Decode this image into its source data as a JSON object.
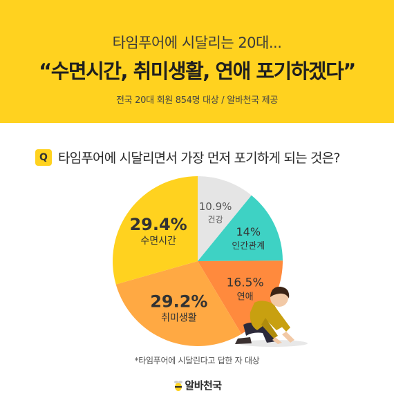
{
  "header": {
    "subtitle": "타임푸어에 시달리는 20대...",
    "title": "“수면시간, 취미생활, 연애 포기하겠다”",
    "source": "전국 20대 회원 854명 대상 / 알바천국 제공"
  },
  "question": {
    "badge": "Q",
    "text": "타임푸어에 시달리면서 가장 먼저 포기하게 되는 것은?"
  },
  "chart_data": {
    "type": "pie",
    "title": "",
    "slices": [
      {
        "label": "건강",
        "value": 10.9,
        "display": "10.9%",
        "color": "#e5e5e5"
      },
      {
        "label": "인간관계",
        "value": 14,
        "display": "14%",
        "color": "#3ed2c4"
      },
      {
        "label": "연애",
        "value": 16.5,
        "display": "16.5%",
        "color": "#ff8a3d"
      },
      {
        "label": "취미생활",
        "value": 29.2,
        "display": "29.2%",
        "color": "#ffa943"
      },
      {
        "label": "수면시간",
        "value": 29.4,
        "display": "29.4%",
        "color": "#ffd21f"
      }
    ]
  },
  "note": "*타임푸어에 시달린다고 답한 자 대상",
  "logo": {
    "text": "알바천국",
    "icon": "bee-icon"
  }
}
